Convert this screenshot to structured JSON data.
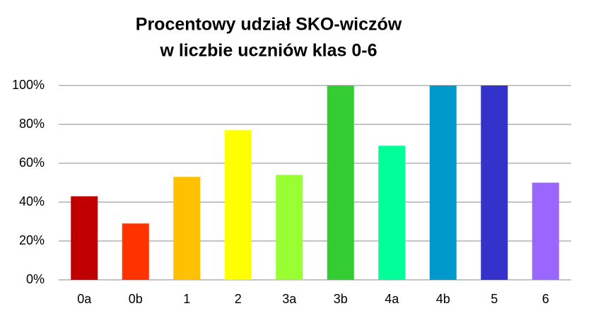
{
  "chart_data": {
    "type": "bar",
    "title": [
      "Procentowy udział SKO-wiczów",
      "w liczbie uczniów klas 0-6"
    ],
    "categories": [
      "0a",
      "0b",
      "1",
      "2",
      "3a",
      "3b",
      "4a",
      "4b",
      "5",
      "6"
    ],
    "values": [
      43,
      29,
      53,
      77,
      54,
      100,
      69,
      100,
      100,
      50
    ],
    "colors": [
      "#c00000",
      "#ff3300",
      "#ffc000",
      "#ffff00",
      "#99ff33",
      "#33cc33",
      "#00ff99",
      "#0099cc",
      "#3333cc",
      "#9966ff"
    ],
    "ylim": [
      0,
      100
    ],
    "yticks": [
      {
        "value": 0,
        "label": "0%"
      },
      {
        "value": 20,
        "label": "20%"
      },
      {
        "value": 40,
        "label": "40%"
      },
      {
        "value": 60,
        "label": "60%"
      },
      {
        "value": 80,
        "label": "80%"
      },
      {
        "value": 100,
        "label": "100%"
      }
    ],
    "grid": true
  }
}
